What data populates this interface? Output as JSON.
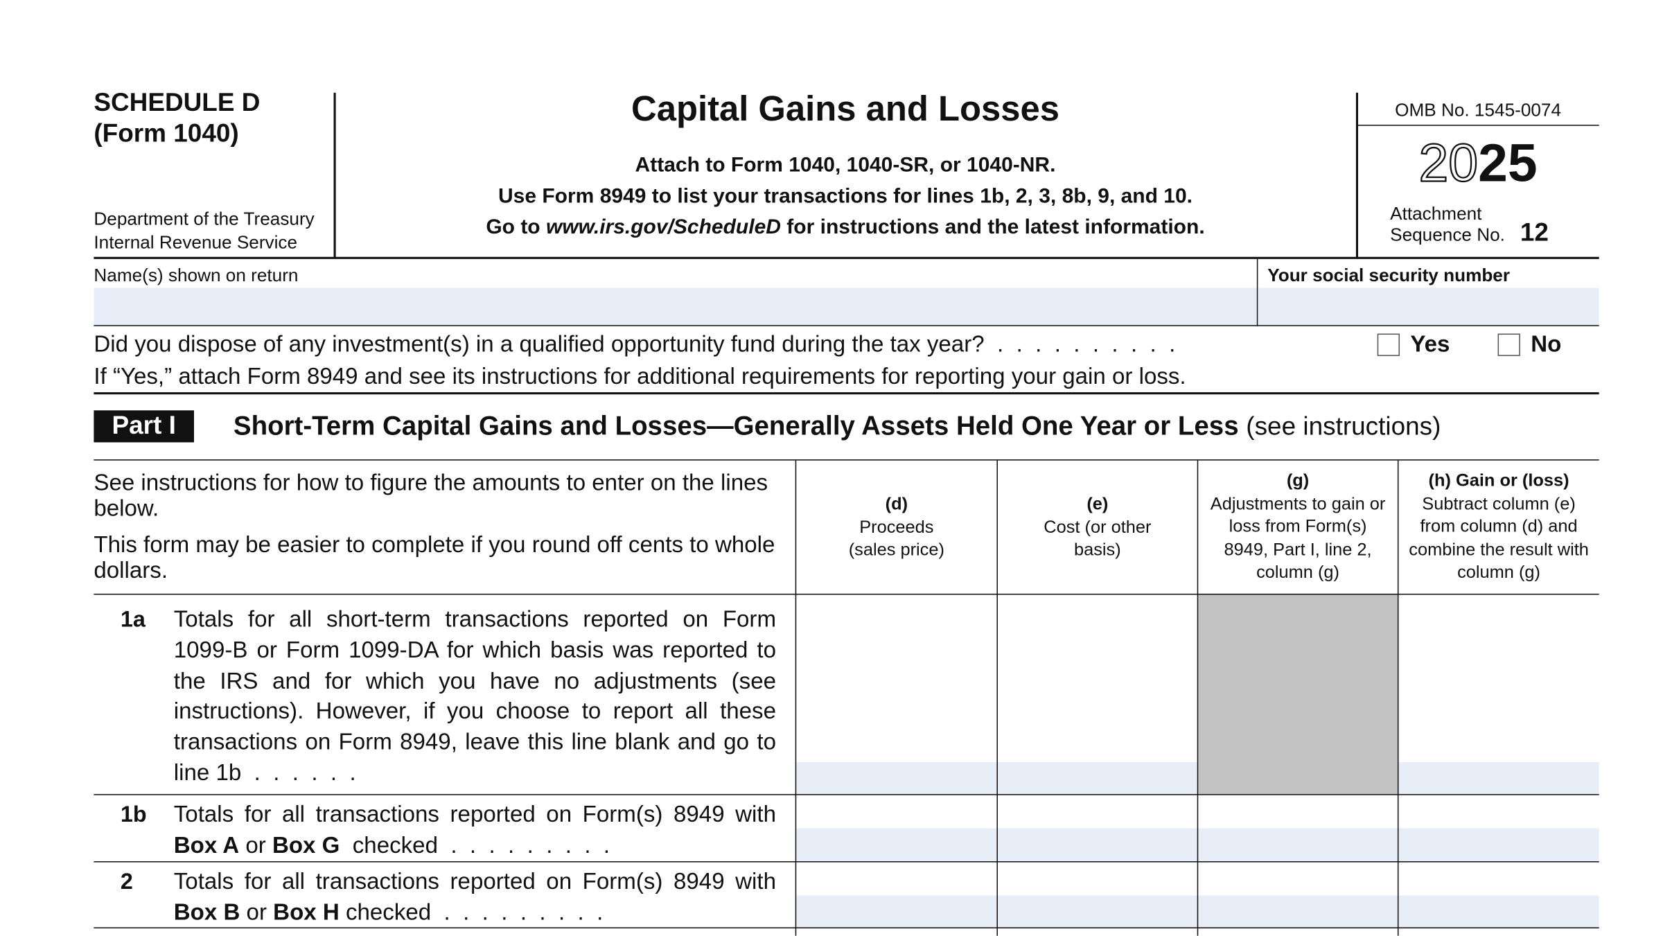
{
  "header": {
    "form_name": "SCHEDULE D",
    "form_number": "(Form 1040)",
    "department": "Department of the Treasury",
    "agency": "Internal Revenue Service",
    "title": "Capital Gains and Losses",
    "instruction_1": "Attach to Form 1040, 1040-SR, or 1040-NR.",
    "instruction_2": "Use Form 8949 to list your transactions for lines 1b, 2, 3, 8b, 9, and 10.",
    "instruction_3_start": "Go to ",
    "instruction_3_url": "www.irs.gov/ScheduleD",
    "instruction_3_end": " for instructions and the latest information.",
    "omb": "OMB No. 1545-0074",
    "year_light": "20",
    "year_bold": "25",
    "attachment": "Attachment",
    "sequence_label": "Sequence No.",
    "sequence_number": "12"
  },
  "fields": {
    "name_label": "Name(s) shown on return",
    "ssn_label": "Your social security number"
  },
  "question": {
    "text": "Did you dispose of any investment(s) in a qualified opportunity fund during the tax year?  .  .  .  .  .  .  .  .  .  .",
    "yes": "Yes",
    "no": "No",
    "note": "If “Yes,” attach Form 8949 and see its instructions for additional requirements for reporting your gain or loss."
  },
  "part": {
    "label": "Part I",
    "title": "Short-Term Capital Gains and Losses—Generally Assets Held One Year or Less",
    "note": "(see instructions)"
  },
  "table": {
    "intro_1": "See instructions for how to figure the amounts to enter on the lines below.",
    "intro_2": "This form may be easier to complete if you round off cents to whole dollars.",
    "columns": [
      {
        "letter": "(d)",
        "text": "Proceeds (sales price)"
      },
      {
        "letter": "(e)",
        "text": "Cost (or other basis)"
      },
      {
        "letter": "(g)",
        "text": "Adjustments to gain or loss from Form(s) 8949, Part I, line 2, column (g)"
      },
      {
        "letter": "(h) Gain or (loss)",
        "text": "Subtract column (e) from column (d) and combine the result with column (g)"
      }
    ],
    "rows": [
      {
        "number": "1a",
        "text": "Totals for all short-term transactions reported on Form 1099-B or Form 1099-DA for which basis was reported to the IRS and for which you have no adjustments (see instructions). However, if you choose to report all these transactions on Form 8949, leave this line blank and go to line 1b  .  .  .  .  .  ."
      },
      {
        "number": "1b",
        "text_1": "Totals for all transactions reported on Form(s) 8949 with",
        "box_1": "Box A",
        "or": "or",
        "box_2": "Box G",
        "text_2": "checked  .  .  .  .  .  .  .  .  ."
      },
      {
        "number": "2",
        "text_1": "Totals for all transactions reported on Form(s) 8949 with",
        "box_1": "Box B",
        "or": "or",
        "box_2": "Box H",
        "text_2": "checked  .  .  .  .  .  .  .  .  ."
      }
    ]
  }
}
